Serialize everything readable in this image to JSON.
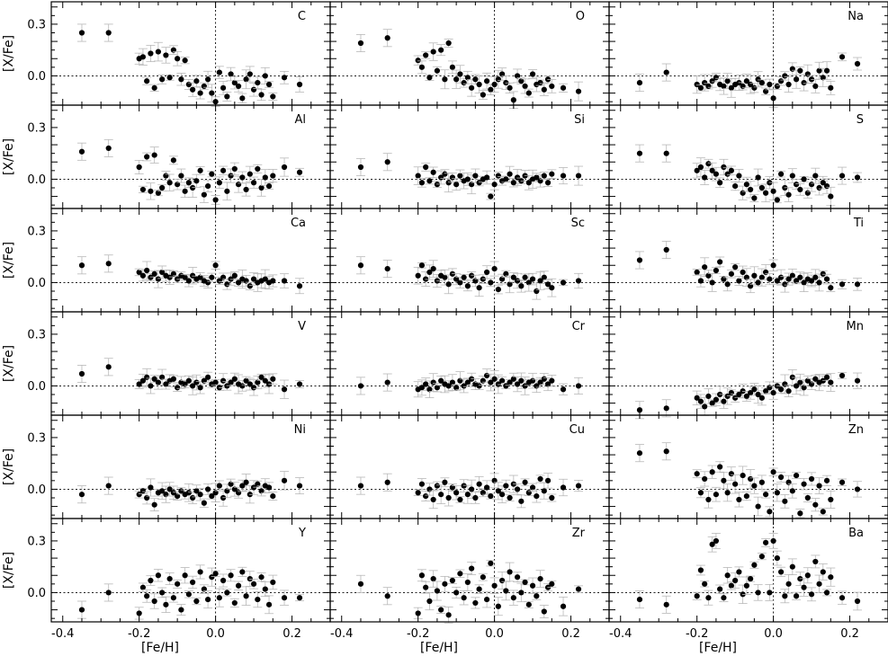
{
  "figure": {
    "xlabel": "[Fe/H]",
    "ylabel": "[X/Fe]",
    "xticks": [
      "-0.4",
      "-0.2",
      "0.0",
      "0.2"
    ],
    "yticks": [
      "-0.0",
      "0.0",
      "0.3"
    ],
    "ytick_labels": [
      "0.0",
      "0.3"
    ]
  },
  "chart_data": {
    "type": "scatter",
    "layout": "6 rows x 3 columns of panels sharing axes",
    "xlim": [
      -0.43,
      0.3
    ],
    "ylim": [
      -0.17,
      0.43
    ],
    "xlabel": "[Fe/H]",
    "ylabel": "[X/Fe]",
    "reference_lines": {
      "x": 0.0,
      "y": 0.0,
      "style": "dotted"
    },
    "common_fe_h": [
      -0.35,
      -0.28,
      -0.2,
      -0.19,
      -0.18,
      -0.17,
      -0.16,
      -0.15,
      -0.14,
      -0.13,
      -0.12,
      -0.11,
      -0.1,
      -0.09,
      -0.08,
      -0.07,
      -0.06,
      -0.05,
      -0.04,
      -0.03,
      -0.02,
      -0.01,
      0.0,
      0.01,
      0.02,
      0.03,
      0.04,
      0.05,
      0.06,
      0.07,
      0.08,
      0.09,
      0.1,
      0.11,
      0.12,
      0.13,
      0.14,
      0.15,
      0.18,
      0.22
    ],
    "panels": [
      {
        "element": "C",
        "values": [
          0.25,
          0.25,
          0.1,
          0.11,
          -0.03,
          0.13,
          -0.07,
          0.14,
          -0.02,
          0.12,
          -0.01,
          0.15,
          0.1,
          -0.02,
          0.09,
          -0.05,
          -0.08,
          -0.03,
          -0.1,
          -0.06,
          -0.02,
          -0.1,
          -0.15,
          0.02,
          -0.07,
          -0.12,
          0.01,
          -0.04,
          -0.06,
          -0.13,
          -0.02,
          0.01,
          -0.08,
          -0.04,
          -0.11,
          0.0,
          -0.05,
          -0.12,
          -0.01,
          -0.05
        ]
      },
      {
        "element": "O",
        "values": [
          0.19,
          0.22,
          0.09,
          0.05,
          0.12,
          -0.01,
          0.14,
          0.03,
          0.15,
          -0.02,
          0.19,
          0.05,
          -0.02,
          0.01,
          -0.04,
          -0.01,
          -0.07,
          -0.02,
          -0.05,
          -0.11,
          -0.03,
          -0.08,
          -0.05,
          -0.02,
          0.01,
          -0.04,
          -0.07,
          -0.14,
          0.0,
          -0.03,
          -0.06,
          -0.1,
          0.01,
          -0.05,
          -0.04,
          -0.08,
          -0.02,
          -0.06,
          -0.07,
          -0.09
        ]
      },
      {
        "element": "Na",
        "values": [
          -0.04,
          0.02,
          -0.05,
          -0.07,
          -0.04,
          -0.06,
          -0.03,
          -0.01,
          -0.05,
          -0.06,
          -0.03,
          -0.07,
          -0.05,
          -0.04,
          -0.06,
          -0.03,
          -0.05,
          -0.07,
          -0.02,
          -0.04,
          -0.09,
          -0.05,
          -0.13,
          -0.06,
          -0.03,
          0.0,
          -0.05,
          0.04,
          -0.02,
          0.03,
          -0.04,
          0.01,
          -0.02,
          -0.06,
          0.03,
          -0.01,
          0.03,
          -0.07,
          0.11,
          0.07
        ]
      },
      {
        "element": "Al",
        "values": [
          0.16,
          0.18,
          0.07,
          -0.06,
          0.13,
          -0.07,
          0.14,
          -0.08,
          -0.05,
          0.02,
          -0.02,
          0.11,
          -0.03,
          0.02,
          -0.07,
          -0.02,
          -0.05,
          -0.01,
          0.05,
          -0.09,
          -0.04,
          0.03,
          -0.12,
          -0.02,
          0.05,
          -0.07,
          0.02,
          0.06,
          -0.03,
          0.01,
          -0.06,
          0.03,
          -0.02,
          0.06,
          -0.05,
          0.01,
          -0.04,
          0.02,
          0.07,
          0.04
        ]
      },
      {
        "element": "Si",
        "values": [
          0.07,
          0.1,
          0.02,
          -0.02,
          0.07,
          -0.01,
          0.04,
          -0.03,
          0.01,
          0.03,
          -0.02,
          0.01,
          -0.03,
          0.02,
          -0.01,
          0.0,
          -0.03,
          0.02,
          -0.02,
          0.0,
          0.01,
          -0.1,
          -0.03,
          0.02,
          -0.01,
          0.0,
          0.03,
          -0.02,
          0.01,
          -0.01,
          0.02,
          -0.02,
          0.0,
          0.01,
          -0.01,
          0.02,
          -0.02,
          0.03,
          0.02,
          0.02
        ]
      },
      {
        "element": "S",
        "values": [
          0.15,
          0.15,
          0.05,
          0.07,
          0.01,
          0.09,
          0.05,
          0.03,
          -0.02,
          0.07,
          0.03,
          0.05,
          -0.04,
          0.02,
          -0.08,
          -0.03,
          -0.06,
          -0.11,
          0.01,
          -0.05,
          -0.08,
          -0.02,
          -0.07,
          -0.12,
          0.03,
          -0.05,
          -0.09,
          0.02,
          -0.03,
          -0.06,
          0.0,
          -0.08,
          -0.03,
          0.02,
          -0.05,
          -0.02,
          -0.04,
          -0.1,
          0.02,
          0.01
        ]
      },
      {
        "element": "Ca",
        "values": [
          0.1,
          0.11,
          0.06,
          0.04,
          0.07,
          0.03,
          0.05,
          0.02,
          0.06,
          0.04,
          0.03,
          0.05,
          0.02,
          0.04,
          0.03,
          0.01,
          0.04,
          0.02,
          0.03,
          0.01,
          0.0,
          0.03,
          0.1,
          0.01,
          0.03,
          -0.01,
          0.02,
          0.04,
          0.0,
          0.02,
          0.01,
          -0.02,
          0.02,
          0.0,
          0.01,
          0.02,
          0.0,
          0.01,
          0.01,
          -0.02
        ]
      },
      {
        "element": "Sc",
        "values": [
          0.1,
          0.08,
          0.04,
          0.1,
          0.02,
          0.06,
          0.08,
          0.01,
          0.04,
          0.03,
          -0.01,
          0.05,
          0.02,
          0.0,
          0.03,
          -0.02,
          0.04,
          0.01,
          -0.03,
          0.02,
          0.06,
          0.0,
          0.08,
          -0.04,
          0.02,
          0.05,
          -0.01,
          0.03,
          0.01,
          -0.02,
          0.03,
          0.0,
          0.02,
          -0.05,
          0.01,
          0.03,
          -0.01,
          -0.03,
          0.0,
          0.01
        ]
      },
      {
        "element": "Ti",
        "values": [
          0.13,
          0.19,
          0.06,
          0.01,
          0.09,
          0.04,
          0.0,
          0.07,
          0.12,
          0.02,
          -0.01,
          0.05,
          0.09,
          0.01,
          0.06,
          0.03,
          -0.02,
          0.04,
          0.0,
          0.03,
          0.06,
          0.02,
          0.1,
          0.01,
          0.03,
          -0.01,
          0.02,
          0.04,
          0.01,
          0.03,
          0.0,
          0.02,
          0.01,
          0.03,
          0.0,
          0.05,
          0.02,
          -0.03,
          -0.01,
          -0.01
        ]
      },
      {
        "element": "V",
        "values": [
          0.07,
          0.11,
          0.01,
          0.03,
          0.05,
          0.0,
          0.04,
          0.02,
          0.05,
          0.01,
          0.03,
          0.04,
          -0.01,
          0.02,
          0.01,
          0.03,
          0.0,
          0.02,
          -0.01,
          0.03,
          0.05,
          0.01,
          0.02,
          -0.01,
          0.03,
          0.0,
          0.02,
          0.04,
          0.01,
          0.0,
          0.03,
          0.01,
          -0.01,
          0.02,
          0.05,
          0.03,
          0.01,
          0.04,
          -0.02,
          0.01
        ]
      },
      {
        "element": "Cr",
        "values": [
          0.0,
          0.02,
          -0.02,
          -0.01,
          0.01,
          -0.02,
          0.02,
          -0.01,
          0.03,
          0.01,
          0.0,
          0.02,
          -0.01,
          0.03,
          0.0,
          0.02,
          0.04,
          0.01,
          0.0,
          0.03,
          0.06,
          0.02,
          0.04,
          0.01,
          0.03,
          0.0,
          0.02,
          0.04,
          0.01,
          0.03,
          0.0,
          0.02,
          0.03,
          0.0,
          0.02,
          0.04,
          0.01,
          0.03,
          -0.02,
          0.0
        ]
      },
      {
        "element": "Mn",
        "values": [
          -0.14,
          -0.13,
          -0.07,
          -0.09,
          -0.12,
          -0.06,
          -0.1,
          -0.08,
          -0.05,
          -0.09,
          -0.06,
          -0.04,
          -0.07,
          -0.05,
          -0.03,
          -0.06,
          -0.04,
          -0.02,
          -0.05,
          -0.07,
          -0.03,
          -0.01,
          -0.04,
          0.0,
          -0.02,
          0.01,
          -0.03,
          0.05,
          0.0,
          0.02,
          -0.01,
          0.03,
          0.01,
          0.04,
          0.02,
          0.03,
          0.05,
          0.02,
          0.06,
          0.03
        ]
      },
      {
        "element": "Ni",
        "values": [
          -0.03,
          0.02,
          -0.03,
          -0.01,
          -0.05,
          0.01,
          -0.09,
          -0.02,
          -0.01,
          -0.03,
          0.0,
          -0.02,
          -0.04,
          -0.01,
          -0.03,
          -0.02,
          -0.05,
          -0.01,
          -0.03,
          -0.08,
          0.0,
          -0.04,
          -0.02,
          0.02,
          -0.05,
          -0.01,
          0.03,
          0.0,
          -0.02,
          0.02,
          0.04,
          -0.03,
          0.01,
          0.03,
          -0.01,
          0.02,
          0.01,
          -0.04,
          0.05,
          0.02
        ]
      },
      {
        "element": "Cu",
        "values": [
          0.02,
          0.04,
          -0.02,
          0.03,
          -0.04,
          0.0,
          -0.06,
          0.02,
          -0.03,
          0.04,
          -0.05,
          0.01,
          -0.02,
          -0.06,
          0.02,
          -0.03,
          0.0,
          -0.05,
          0.03,
          -0.02,
          0.01,
          -0.04,
          0.05,
          -0.01,
          -0.03,
          0.02,
          -0.05,
          0.03,
          0.0,
          -0.07,
          0.04,
          -0.02,
          0.01,
          -0.04,
          0.06,
          -0.01,
          0.05,
          -0.05,
          0.01,
          0.02
        ]
      },
      {
        "element": "Zn",
        "values": [
          0.21,
          0.22,
          0.09,
          -0.02,
          0.06,
          -0.06,
          0.1,
          -0.03,
          0.13,
          0.05,
          -0.02,
          0.09,
          0.03,
          -0.06,
          0.08,
          -0.04,
          0.06,
          0.02,
          -0.1,
          0.04,
          -0.03,
          -0.13,
          0.1,
          -0.02,
          0.07,
          -0.07,
          0.04,
          -0.01,
          0.08,
          -0.14,
          0.03,
          -0.05,
          0.06,
          -0.09,
          0.02,
          -0.13,
          0.05,
          -0.06,
          0.04,
          0.0
        ]
      },
      {
        "element": "Y",
        "values": [
          -0.1,
          0.0,
          -0.12,
          0.03,
          -0.02,
          0.07,
          -0.05,
          0.1,
          0.0,
          -0.07,
          0.08,
          -0.03,
          0.05,
          -0.1,
          0.1,
          -0.01,
          0.06,
          -0.05,
          0.12,
          0.02,
          -0.04,
          0.09,
          0.11,
          -0.03,
          0.07,
          0.0,
          0.1,
          -0.06,
          0.04,
          0.12,
          -0.02,
          0.08,
          0.05,
          -0.04,
          0.09,
          0.02,
          -0.07,
          0.06,
          -0.03,
          -0.03
        ]
      },
      {
        "element": "Zr",
        "values": [
          0.05,
          -0.02,
          -0.12,
          0.1,
          0.03,
          -0.05,
          0.08,
          0.01,
          -0.1,
          0.05,
          -0.13,
          0.07,
          0.0,
          0.11,
          -0.03,
          0.06,
          0.14,
          -0.06,
          0.02,
          0.09,
          -0.04,
          0.17,
          0.04,
          -0.08,
          0.07,
          0.01,
          0.12,
          -0.03,
          0.09,
          0.0,
          0.06,
          -0.07,
          0.04,
          -0.02,
          0.08,
          -0.11,
          0.03,
          0.05,
          -0.08,
          0.02
        ]
      },
      {
        "element": "Ba",
        "values": [
          -0.04,
          -0.07,
          -0.02,
          0.13,
          0.05,
          -0.03,
          0.28,
          0.3,
          0.02,
          -0.03,
          0.1,
          0.04,
          0.07,
          0.12,
          -0.01,
          0.04,
          0.08,
          0.16,
          0.0,
          0.21,
          0.29,
          0.0,
          0.3,
          0.2,
          0.12,
          -0.02,
          0.05,
          0.15,
          -0.02,
          0.08,
          0.03,
          0.1,
          -0.01,
          0.18,
          0.05,
          0.12,
          0.0,
          0.09,
          -0.03,
          -0.05
        ]
      }
    ],
    "colors": {
      "points": "#000000",
      "error_bars": "#b8b8b8"
    }
  }
}
